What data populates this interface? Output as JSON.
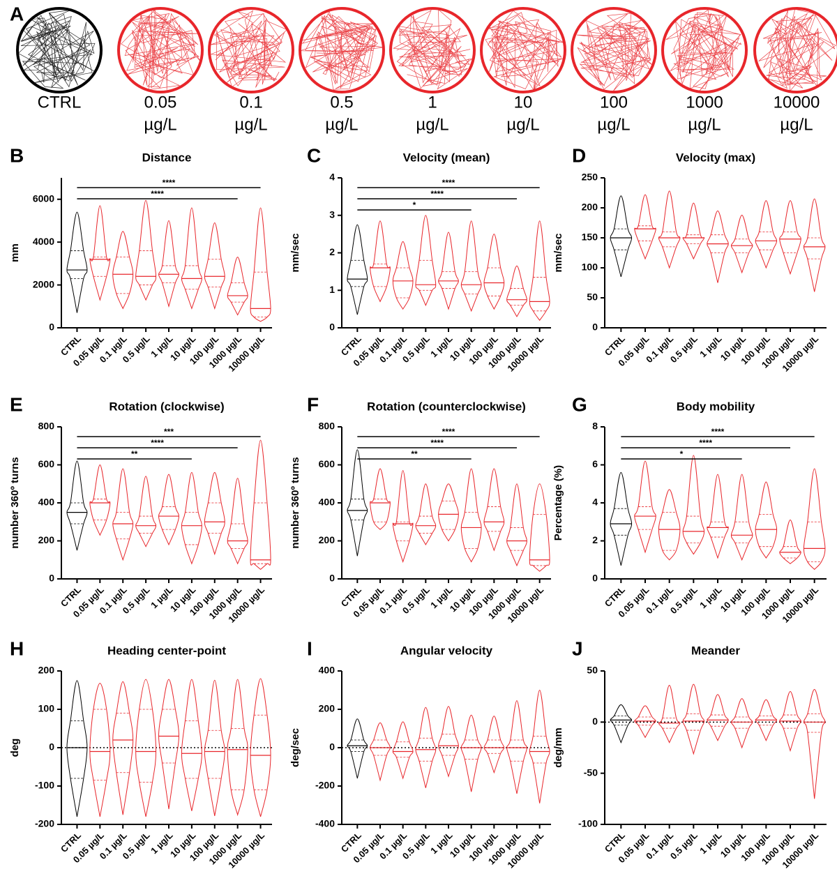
{
  "panel_a": {
    "letter": "A",
    "color": "#e8262b",
    "control_color": "#000000",
    "labels": [
      {
        "dose": "CTRL"
      },
      {
        "dose": "0.05",
        "unit": "µg/L"
      },
      {
        "dose": "0.1",
        "unit": "µg/L"
      },
      {
        "dose": "0.5",
        "unit": "µg/L"
      },
      {
        "dose": "1",
        "unit": "µg/L"
      },
      {
        "dose": "10",
        "unit": "µg/L"
      },
      {
        "dose": "100",
        "unit": "µg/L"
      },
      {
        "dose": "1000",
        "unit": "µg/L"
      },
      {
        "dose": "10000",
        "unit": "µg/L"
      }
    ]
  },
  "chart_data": [
    {
      "type": "violin",
      "letter": "B",
      "title": "Distance",
      "ylabel": "mm",
      "ylim": [
        0,
        7000
      ],
      "yticks": [
        0,
        2000,
        4000,
        6000
      ],
      "color": "#e8262b",
      "control_color": "#000000",
      "categories": [
        "CTRL",
        "0.05 µg/L",
        "0.1 µg/L",
        "0.5 µg/L",
        "1 µg/L",
        "10 µg/L",
        "100 µg/L",
        "1000 µg/L",
        "10000 µg/L"
      ],
      "groups": [
        {
          "min": 700,
          "q1": 2300,
          "median": 2700,
          "q3": 3600,
          "max": 5400
        },
        {
          "min": 1300,
          "q1": 2400,
          "median": 3200,
          "q3": 3300,
          "max": 5700
        },
        {
          "min": 900,
          "q1": 1600,
          "median": 2500,
          "q3": 3300,
          "max": 4500
        },
        {
          "min": 1300,
          "q1": 2000,
          "median": 2400,
          "q3": 3600,
          "max": 5950
        },
        {
          "min": 1000,
          "q1": 2100,
          "median": 2500,
          "q3": 2900,
          "max": 5000
        },
        {
          "min": 900,
          "q1": 1800,
          "median": 2300,
          "q3": 2900,
          "max": 5600
        },
        {
          "min": 900,
          "q1": 1900,
          "median": 2400,
          "q3": 3200,
          "max": 4900
        },
        {
          "min": 600,
          "q1": 1200,
          "median": 1500,
          "q3": 2100,
          "max": 3300
        },
        {
          "min": 300,
          "q1": 500,
          "median": 900,
          "q3": 2600,
          "max": 5600
        }
      ],
      "significance": [
        {
          "from": "CTRL",
          "to": "10000 µg/L",
          "label": "****"
        },
        {
          "from": "CTRL",
          "to": "1000 µg/L",
          "label": "****"
        }
      ]
    },
    {
      "type": "violin",
      "letter": "C",
      "title": "Velocity (mean)",
      "ylabel": "mm/sec",
      "ylim": [
        0,
        4
      ],
      "yticks": [
        0,
        1,
        2,
        3,
        4
      ],
      "color": "#e8262b",
      "control_color": "#000000",
      "categories": [
        "CTRL",
        "0.05 µg/L",
        "0.1 µg/L",
        "0.5 µg/L",
        "1 µg/L",
        "10 µg/L",
        "100 µg/L",
        "1000 µg/L",
        "10000 µg/L"
      ],
      "groups": [
        {
          "min": 0.35,
          "q1": 1.1,
          "median": 1.3,
          "q3": 1.8,
          "max": 2.75
        },
        {
          "min": 0.7,
          "q1": 1.1,
          "median": 1.6,
          "q3": 1.7,
          "max": 2.85
        },
        {
          "min": 0.5,
          "q1": 0.8,
          "median": 1.25,
          "q3": 1.6,
          "max": 2.3
        },
        {
          "min": 0.6,
          "q1": 1.0,
          "median": 1.15,
          "q3": 1.8,
          "max": 3.0
        },
        {
          "min": 0.5,
          "q1": 1.05,
          "median": 1.25,
          "q3": 1.5,
          "max": 2.55
        },
        {
          "min": 0.45,
          "q1": 0.9,
          "median": 1.15,
          "q3": 1.5,
          "max": 2.85
        },
        {
          "min": 0.5,
          "q1": 0.85,
          "median": 1.2,
          "q3": 1.6,
          "max": 2.5
        },
        {
          "min": 0.3,
          "q1": 0.6,
          "median": 0.75,
          "q3": 1.05,
          "max": 1.65
        },
        {
          "min": 0.2,
          "q1": 0.45,
          "median": 0.7,
          "q3": 1.35,
          "max": 2.85
        }
      ],
      "significance": [
        {
          "from": "CTRL",
          "to": "10000 µg/L",
          "label": "****"
        },
        {
          "from": "CTRL",
          "to": "1000 µg/L",
          "label": "****"
        },
        {
          "from": "CTRL",
          "to": "10 µg/L",
          "label": "*"
        }
      ]
    },
    {
      "type": "violin",
      "letter": "D",
      "title": "Velocity (max)",
      "ylabel": "mm/sec",
      "ylim": [
        0,
        250
      ],
      "yticks": [
        0,
        50,
        100,
        150,
        200,
        250
      ],
      "color": "#e8262b",
      "control_color": "#000000",
      "categories": [
        "CTRL",
        "0.05 µg/L",
        "0.1 µg/L",
        "0.5 µg/L",
        "1 µg/L",
        "10 µg/L",
        "100 µg/L",
        "1000 µg/L",
        "10000 µg/L"
      ],
      "groups": [
        {
          "min": 85,
          "q1": 130,
          "median": 150,
          "q3": 165,
          "max": 220
        },
        {
          "min": 115,
          "q1": 145,
          "median": 165,
          "q3": 170,
          "max": 222
        },
        {
          "min": 100,
          "q1": 135,
          "median": 150,
          "q3": 160,
          "max": 228
        },
        {
          "min": 115,
          "q1": 140,
          "median": 150,
          "q3": 155,
          "max": 208
        },
        {
          "min": 75,
          "q1": 125,
          "median": 140,
          "q3": 155,
          "max": 195
        },
        {
          "min": 92,
          "q1": 125,
          "median": 137,
          "q3": 148,
          "max": 188
        },
        {
          "min": 100,
          "q1": 130,
          "median": 145,
          "q3": 160,
          "max": 212
        },
        {
          "min": 90,
          "q1": 125,
          "median": 148,
          "q3": 160,
          "max": 212
        },
        {
          "min": 60,
          "q1": 115,
          "median": 135,
          "q3": 150,
          "max": 215
        }
      ],
      "significance": []
    },
    {
      "type": "violin",
      "letter": "E",
      "title": "Rotation (clockwise)",
      "ylabel": "number 360º turns",
      "ylim": [
        0,
        800
      ],
      "yticks": [
        0,
        200,
        400,
        600,
        800
      ],
      "color": "#e8262b",
      "control_color": "#000000",
      "categories": [
        "CTRL",
        "0.05 µg/L",
        "0.1 µg/L",
        "0.5 µg/L",
        "1 µg/L",
        "10 µg/L",
        "100 µg/L",
        "1000 µg/L",
        "10000 µg/L"
      ],
      "groups": [
        {
          "min": 150,
          "q1": 290,
          "median": 350,
          "q3": 400,
          "max": 620
        },
        {
          "min": 230,
          "q1": 310,
          "median": 400,
          "q3": 420,
          "max": 600
        },
        {
          "min": 100,
          "q1": 210,
          "median": 290,
          "q3": 350,
          "max": 580
        },
        {
          "min": 170,
          "q1": 240,
          "median": 280,
          "q3": 330,
          "max": 540
        },
        {
          "min": 180,
          "q1": 260,
          "median": 330,
          "q3": 380,
          "max": 550
        },
        {
          "min": 80,
          "q1": 180,
          "median": 280,
          "q3": 350,
          "max": 560
        },
        {
          "min": 130,
          "q1": 240,
          "median": 300,
          "q3": 400,
          "max": 560
        },
        {
          "min": 80,
          "q1": 160,
          "median": 200,
          "q3": 290,
          "max": 530
        },
        {
          "min": 50,
          "q1": 80,
          "median": 100,
          "q3": 400,
          "max": 730
        }
      ],
      "significance": [
        {
          "from": "CTRL",
          "to": "10000 µg/L",
          "label": "***"
        },
        {
          "from": "CTRL",
          "to": "1000 µg/L",
          "label": "****"
        },
        {
          "from": "CTRL",
          "to": "10 µg/L",
          "label": "**"
        }
      ]
    },
    {
      "type": "violin",
      "letter": "F",
      "title": "Rotation (counterclockwise)",
      "ylabel": "number 360º turns",
      "ylim": [
        0,
        800
      ],
      "yticks": [
        0,
        200,
        400,
        600,
        800
      ],
      "color": "#e8262b",
      "control_color": "#000000",
      "categories": [
        "CTRL",
        "0.05 µg/L",
        "0.1 µg/L",
        "0.5 µg/L",
        "1 µg/L",
        "10 µg/L",
        "100 µg/L",
        "1000 µg/L",
        "10000 µg/L"
      ],
      "groups": [
        {
          "min": 120,
          "q1": 310,
          "median": 360,
          "q3": 420,
          "max": 680
        },
        {
          "min": 260,
          "q1": 300,
          "median": 400,
          "q3": 420,
          "max": 580
        },
        {
          "min": 90,
          "q1": 200,
          "median": 290,
          "q3": 300,
          "max": 570
        },
        {
          "min": 180,
          "q1": 240,
          "median": 280,
          "q3": 330,
          "max": 500
        },
        {
          "min": 200,
          "q1": 260,
          "median": 340,
          "q3": 410,
          "max": 500
        },
        {
          "min": 90,
          "q1": 160,
          "median": 270,
          "q3": 350,
          "max": 580
        },
        {
          "min": 150,
          "q1": 250,
          "median": 300,
          "q3": 380,
          "max": 580
        },
        {
          "min": 70,
          "q1": 150,
          "median": 200,
          "q3": 270,
          "max": 500
        },
        {
          "min": 40,
          "q1": 70,
          "median": 100,
          "q3": 340,
          "max": 500
        }
      ],
      "significance": [
        {
          "from": "CTRL",
          "to": "10000 µg/L",
          "label": "****"
        },
        {
          "from": "CTRL",
          "to": "1000 µg/L",
          "label": "****"
        },
        {
          "from": "CTRL",
          "to": "10 µg/L",
          "label": "**"
        }
      ]
    },
    {
      "type": "violin",
      "letter": "G",
      "title": "Body mobility",
      "ylabel": "Percentage (%)",
      "ylim": [
        0,
        8
      ],
      "yticks": [
        0,
        2,
        4,
        6,
        8
      ],
      "color": "#e8262b",
      "control_color": "#000000",
      "categories": [
        "CTRL",
        "0.05 µg/L",
        "0.1 µg/L",
        "0.5 µg/L",
        "1 µg/L",
        "10 µg/L",
        "100 µg/L",
        "1000 µg/L",
        "10000 µg/L"
      ],
      "groups": [
        {
          "min": 0.7,
          "q1": 2.3,
          "median": 2.9,
          "q3": 3.7,
          "max": 5.6
        },
        {
          "min": 1.4,
          "q1": 2.6,
          "median": 3.3,
          "q3": 3.8,
          "max": 6.2
        },
        {
          "min": 1.0,
          "q1": 1.5,
          "median": 2.6,
          "q3": 3.5,
          "max": 4.7
        },
        {
          "min": 1.3,
          "q1": 1.9,
          "median": 2.5,
          "q3": 3.3,
          "max": 6.5
        },
        {
          "min": 1.1,
          "q1": 2.2,
          "median": 2.7,
          "q3": 3.0,
          "max": 5.5
        },
        {
          "min": 1.0,
          "q1": 1.9,
          "median": 2.3,
          "q3": 3.0,
          "max": 5.5
        },
        {
          "min": 1.1,
          "q1": 1.7,
          "median": 2.6,
          "q3": 3.4,
          "max": 5.1
        },
        {
          "min": 0.8,
          "q1": 1.1,
          "median": 1.4,
          "q3": 1.7,
          "max": 3.1
        },
        {
          "min": 0.5,
          "q1": 0.9,
          "median": 1.6,
          "q3": 3.0,
          "max": 5.8
        }
      ],
      "significance": [
        {
          "from": "CTRL",
          "to": "10000 µg/L",
          "label": "****"
        },
        {
          "from": "CTRL",
          "to": "1000 µg/L",
          "label": "****"
        },
        {
          "from": "CTRL",
          "to": "10 µg/L",
          "label": "*"
        }
      ]
    },
    {
      "type": "violin",
      "letter": "H",
      "title": "Heading center-point",
      "ylabel": "deg",
      "ylim": [
        -200,
        200
      ],
      "yticks": [
        -200,
        -100,
        0,
        100,
        200
      ],
      "refline": 0,
      "color": "#e8262b",
      "control_color": "#000000",
      "categories": [
        "CTRL",
        "0.05 µg/L",
        "0.1 µg/L",
        "0.5 µg/L",
        "1 µg/L",
        "10 µg/L",
        "100 µg/L",
        "1000 µg/L",
        "10000 µg/L"
      ],
      "groups": [
        {
          "min": -180,
          "q1": -80,
          "median": 0,
          "q3": 70,
          "max": 175
        },
        {
          "min": -180,
          "q1": -85,
          "median": -10,
          "q3": 100,
          "max": 168
        },
        {
          "min": -175,
          "q1": -65,
          "median": 20,
          "q3": 90,
          "max": 172
        },
        {
          "min": -180,
          "q1": -90,
          "median": -10,
          "q3": 100,
          "max": 178
        },
        {
          "min": -160,
          "q1": -40,
          "median": 30,
          "q3": 100,
          "max": 178
        },
        {
          "min": -165,
          "q1": -80,
          "median": -15,
          "q3": 70,
          "max": 178
        },
        {
          "min": -178,
          "q1": -80,
          "median": -10,
          "q3": 45,
          "max": 176
        },
        {
          "min": -175,
          "q1": -110,
          "median": -5,
          "q3": 50,
          "max": 178
        },
        {
          "min": -180,
          "q1": -110,
          "median": -20,
          "q3": 85,
          "max": 180
        }
      ],
      "significance": []
    },
    {
      "type": "violin",
      "letter": "I",
      "title": "Angular velocity",
      "ylabel": "deg/sec",
      "ylim": [
        -400,
        400
      ],
      "yticks": [
        -400,
        -200,
        0,
        200,
        400
      ],
      "refline": 0,
      "color": "#e8262b",
      "control_color": "#000000",
      "categories": [
        "CTRL",
        "0.05 µg/L",
        "0.1 µg/L",
        "0.5 µg/L",
        "1 µg/L",
        "10 µg/L",
        "100 µg/L",
        "1000 µg/L",
        "10000 µg/L"
      ],
      "groups": [
        {
          "min": -160,
          "q1": -20,
          "median": 10,
          "q3": 40,
          "max": 150
        },
        {
          "min": -170,
          "q1": -40,
          "median": 0,
          "q3": 40,
          "max": 130
        },
        {
          "min": -160,
          "q1": -50,
          "median": -20,
          "q3": 30,
          "max": 135
        },
        {
          "min": -210,
          "q1": -70,
          "median": -10,
          "q3": 50,
          "max": 210
        },
        {
          "min": -150,
          "q1": -40,
          "median": 10,
          "q3": 70,
          "max": 215
        },
        {
          "min": -230,
          "q1": -60,
          "median": 0,
          "q3": 40,
          "max": 170
        },
        {
          "min": -130,
          "q1": -30,
          "median": 0,
          "q3": 40,
          "max": 165
        },
        {
          "min": -240,
          "q1": -70,
          "median": 0,
          "q3": 40,
          "max": 245
        },
        {
          "min": -290,
          "q1": -80,
          "median": -20,
          "q3": 60,
          "max": 300
        }
      ],
      "significance": []
    },
    {
      "type": "violin",
      "letter": "J",
      "title": "Meander",
      "ylabel": "deg/mm",
      "ylim": [
        -100,
        50
      ],
      "yticks": [
        -100,
        -50,
        0,
        50
      ],
      "refline": 0,
      "color": "#e8262b",
      "control_color": "#000000",
      "categories": [
        "CTRL",
        "0.05 µg/L",
        "0.1 µg/L",
        "0.5 µg/L",
        "1 µg/L",
        "10 µg/L",
        "100 µg/L",
        "1000 µg/L",
        "10000 µg/L"
      ],
      "groups": [
        {
          "min": -20,
          "q1": -3,
          "median": 2,
          "q3": 6,
          "max": 17
        },
        {
          "min": -15,
          "q1": -3,
          "median": 1,
          "q3": 5,
          "max": 16
        },
        {
          "min": -20,
          "q1": -6,
          "median": -1,
          "q3": 4,
          "max": 36
        },
        {
          "min": -31,
          "q1": -8,
          "median": 1,
          "q3": 8,
          "max": 37
        },
        {
          "min": -18,
          "q1": -4,
          "median": 2,
          "q3": 7,
          "max": 27
        },
        {
          "min": -25,
          "q1": -6,
          "median": 0,
          "q3": 5,
          "max": 23
        },
        {
          "min": -18,
          "q1": -3,
          "median": 2,
          "q3": 6,
          "max": 22
        },
        {
          "min": -28,
          "q1": -6,
          "median": 1,
          "q3": 7,
          "max": 30
        },
        {
          "min": -75,
          "q1": -10,
          "median": 0,
          "q3": 8,
          "max": 32
        }
      ],
      "significance": []
    }
  ]
}
